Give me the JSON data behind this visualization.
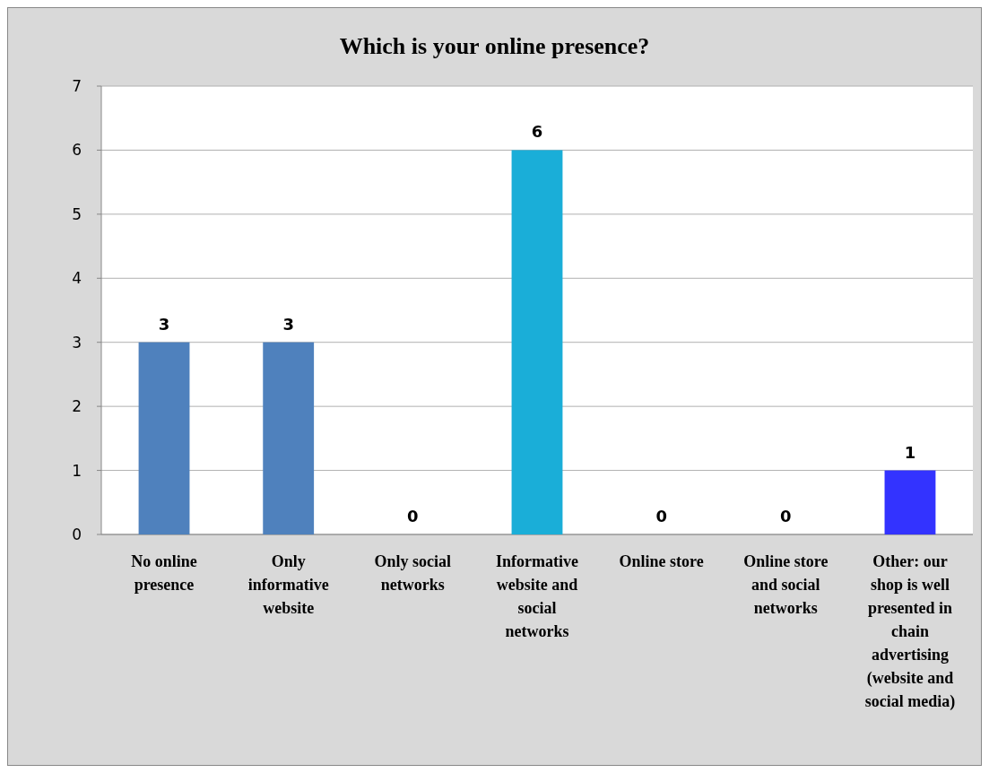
{
  "chart_data": {
    "type": "bar",
    "title": "Which is your online presence?",
    "categories": [
      "No online presence",
      "Only informative website",
      "Only social networks",
      "Informative website and social networks",
      "Online store",
      "Online store and social networks",
      "Other: our shop is well presented in chain advertising (website and social media)"
    ],
    "values": [
      3,
      3,
      0,
      6,
      0,
      0,
      1
    ],
    "colors": [
      "#4f81bd",
      "#4f81bd",
      "#4f81bd",
      "#1aaed8",
      "#4f81bd",
      "#4f81bd",
      "#3333ff"
    ],
    "ylim": [
      0,
      7
    ],
    "yticks": [
      0,
      1,
      2,
      3,
      4,
      5,
      6,
      7
    ],
    "grid": "y",
    "data_labels": true
  }
}
